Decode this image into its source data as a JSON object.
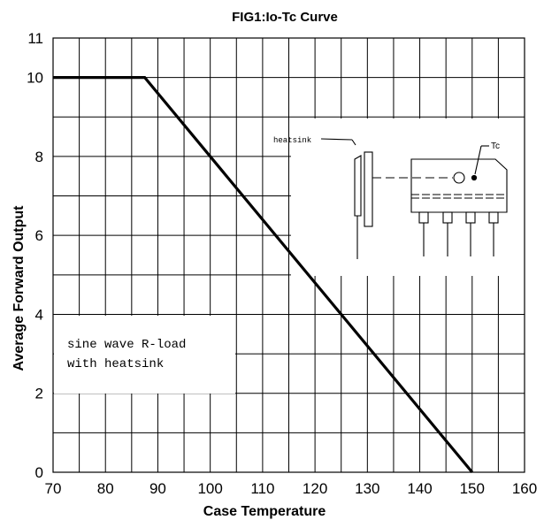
{
  "chart_data": {
    "type": "line",
    "title": "FIG1:Io-Tc Curve",
    "xlabel": "Case Temperature",
    "ylabel": "Average Forward Output",
    "xlim": [
      70,
      160
    ],
    "ylim": [
      0,
      11
    ],
    "xticks": [
      "70",
      "80",
      "90",
      "100",
      "110",
      "120",
      "130",
      "140",
      "150",
      "160"
    ],
    "yticks": [
      "0",
      "2",
      "4",
      "6",
      "8",
      "10",
      "11"
    ],
    "grid": true,
    "series": [
      {
        "x": [
          70,
          87.5,
          150
        ],
        "y": [
          10,
          10,
          0
        ]
      }
    ],
    "annotations": {
      "condition_line1": "sine wave R-load",
      "condition_line2": "with heatsink",
      "heatsink_label": "heatsink",
      "tc_label": "Tc"
    }
  }
}
